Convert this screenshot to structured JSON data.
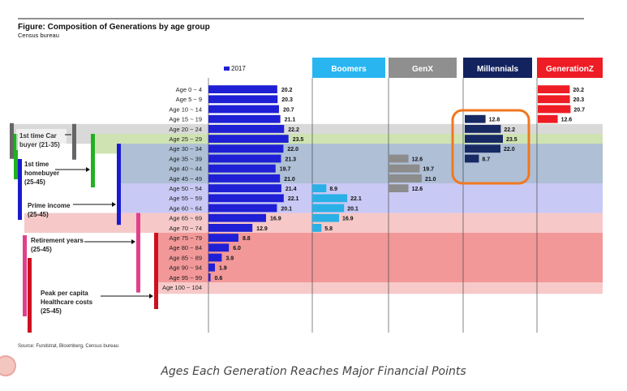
{
  "figure": {
    "title": "Figure: Composition of Generations by age group",
    "subtitle": "Census bureau",
    "source": "Source: Fundstrat, Bloomberg, Census bureau",
    "caption": "Ages Each Generation Reaches Major Financial Points"
  },
  "chart_data": {
    "type": "bar",
    "orientation": "horizontal",
    "title": "Figure: Composition of Generations by age group",
    "legend": [
      "2017"
    ],
    "categories": [
      "Age 0 ~ 4",
      "Age 5 ~ 9",
      "Age 10 ~ 14",
      "Age 15 ~ 19",
      "Age 20 ~ 24",
      "Age 25 ~ 29",
      "Age 30 ~ 34",
      "Age 35 ~ 39",
      "Age 40 ~ 44",
      "Age 45 ~ 49",
      "Age 50 ~ 54",
      "Age 55 ~ 59",
      "Age 60 ~ 64",
      "Age 65 ~ 69",
      "Age 70 ~ 74",
      "Age 75 ~ 79",
      "Age 80 ~ 84",
      "Age 85 ~ 89",
      "Age 90 ~ 94",
      "Age 95 ~ 99",
      "Age 100 ~ 104"
    ],
    "xlim": [
      0,
      25
    ],
    "series": [
      {
        "name": "2017",
        "color": "#1f1fd6",
        "values": [
          20.2,
          20.3,
          20.7,
          21.1,
          22.2,
          23.5,
          22.0,
          21.3,
          19.7,
          21.0,
          21.4,
          22.1,
          20.1,
          16.9,
          12.9,
          8.8,
          6.0,
          3.9,
          1.9,
          0.6,
          null
        ],
        "labels": [
          "20.2",
          "20.3",
          "20.7",
          "21.1",
          "22.2",
          "23.5",
          "22.0",
          "21.3",
          "19.7",
          "21.0",
          "21.4",
          "22.1",
          "20.1",
          "16.9",
          "12.9",
          "8.8",
          "6.0",
          "3.9",
          "1.9",
          "0.6",
          ""
        ]
      },
      {
        "name": "Boomers",
        "color": "#2ab0e6",
        "values": [
          null,
          null,
          null,
          null,
          null,
          null,
          null,
          null,
          null,
          null,
          8.9,
          22.1,
          20.1,
          16.9,
          5.8,
          null,
          null,
          null,
          null,
          null,
          null
        ],
        "labels": [
          "",
          "",
          "",
          "",
          "",
          "",
          "",
          "",
          "",
          "",
          "8.9",
          "22.1",
          "20.1",
          "16.9",
          "5.8",
          "",
          "",
          "",
          "",
          "",
          ""
        ]
      },
      {
        "name": "GenX",
        "color": "#8c8c8c",
        "values": [
          null,
          null,
          null,
          null,
          null,
          null,
          null,
          12.6,
          19.7,
          21.0,
          12.6,
          null,
          null,
          null,
          null,
          null,
          null,
          null,
          null,
          null,
          null
        ],
        "labels": [
          "",
          "",
          "",
          "",
          "",
          "",
          "",
          "12.6",
          "19.7",
          "21.0",
          "12.6",
          "",
          "",
          "",
          "",
          "",
          "",
          "",
          "",
          "",
          ""
        ]
      },
      {
        "name": "Millennials",
        "color": "#172a63",
        "values": [
          null,
          null,
          null,
          12.8,
          22.2,
          23.5,
          22.0,
          8.7,
          null,
          null,
          null,
          null,
          null,
          null,
          null,
          null,
          null,
          null,
          null,
          null,
          null
        ],
        "labels": [
          "",
          "",
          "",
          "12.8",
          "22.2",
          "23.5",
          "22.0",
          "8.7",
          "",
          "",
          "",
          "",
          "",
          "",
          "",
          "",
          "",
          "",
          "",
          "",
          ""
        ]
      },
      {
        "name": "GenerationZ",
        "color": "#ee1c24",
        "values": [
          20.2,
          20.3,
          20.7,
          12.6,
          null,
          null,
          null,
          null,
          null,
          null,
          null,
          null,
          null,
          null,
          null,
          null,
          null,
          null,
          null,
          null,
          null
        ],
        "labels": [
          "20.2",
          "20.3",
          "20.7",
          "12.6",
          "",
          "",
          "",
          "",
          "",
          "",
          "",
          "",
          "",
          "",
          "",
          "",
          "",
          "",
          "",
          "",
          ""
        ]
      }
    ],
    "panel_headers": [
      "Boomers",
      "GenX",
      "Millennials",
      "GenerationZ"
    ],
    "bands": [
      {
        "name": "first-car",
        "rows": [
          4,
          5
        ],
        "color": "#d9d9d9"
      },
      {
        "name": "homebuyer",
        "rows": [
          5,
          6
        ],
        "color": "#cfe3b2"
      },
      {
        "name": "homebuyer2",
        "rows": [
          6,
          9
        ],
        "color": "#aebfd6"
      },
      {
        "name": "prime-income",
        "rows": [
          10,
          12
        ],
        "color": "#c9c9f5"
      },
      {
        "name": "retirement",
        "rows": [
          13,
          14
        ],
        "color": "#f6c8c8"
      },
      {
        "name": "healthcare",
        "rows": [
          15,
          20
        ],
        "color": "#f29898"
      }
    ],
    "annotations": [
      {
        "text": "1st time Car\nbuyer (21-35)",
        "color": "#555555"
      },
      {
        "text": "1st time\nhomebuyer\n(25-45)",
        "color": "#2aa52a"
      },
      {
        "text": "Prime income\n(25-45)",
        "color": "#1f1fd6"
      },
      {
        "text": "Retirement years\n(25-45)",
        "color": "#e0408c"
      },
      {
        "text": "Peak per capita\nHealthcare costs\n(25-45)",
        "color": "#cc1020"
      }
    ],
    "highlight": "Millennials, Age 15 ~ 19 to Age 35 ~ 39 (orange rounded box)"
  }
}
